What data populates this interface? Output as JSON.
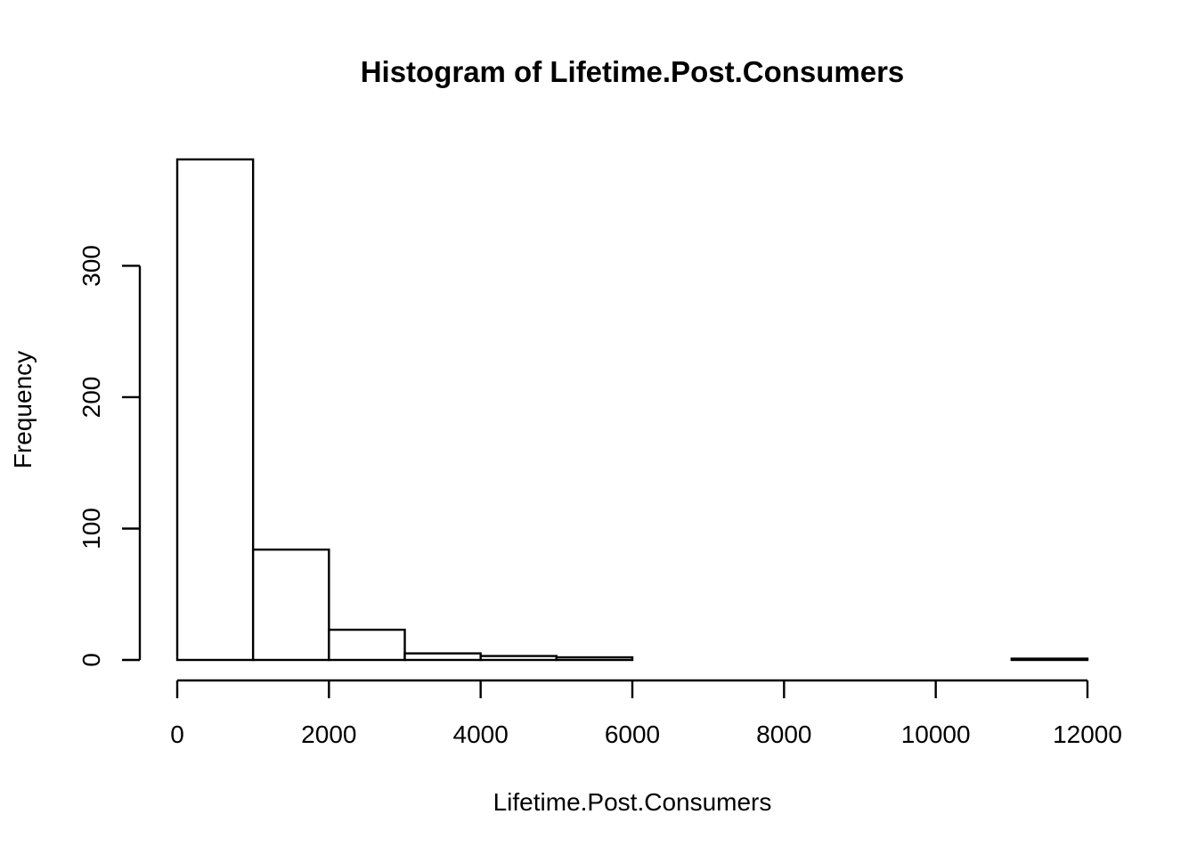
{
  "chart_data": {
    "type": "bar",
    "title": "Histogram of Lifetime.Post.Consumers",
    "xlabel": "Lifetime.Post.Consumers",
    "ylabel": "Frequency",
    "bins": [
      {
        "start": 0,
        "end": 1000,
        "count": 381
      },
      {
        "start": 1000,
        "end": 2000,
        "count": 84
      },
      {
        "start": 2000,
        "end": 3000,
        "count": 23
      },
      {
        "start": 3000,
        "end": 4000,
        "count": 5
      },
      {
        "start": 4000,
        "end": 5000,
        "count": 3
      },
      {
        "start": 5000,
        "end": 6000,
        "count": 2
      },
      {
        "start": 6000,
        "end": 7000,
        "count": 0
      },
      {
        "start": 7000,
        "end": 8000,
        "count": 0
      },
      {
        "start": 8000,
        "end": 9000,
        "count": 0
      },
      {
        "start": 9000,
        "end": 10000,
        "count": 0
      },
      {
        "start": 10000,
        "end": 11000,
        "count": 0
      },
      {
        "start": 11000,
        "end": 12000,
        "count": 1
      }
    ],
    "xlim": [
      0,
      12000
    ],
    "ylim": [
      0,
      381
    ],
    "xticks": [
      0,
      2000,
      4000,
      6000,
      8000,
      10000,
      12000
    ],
    "xtick_labels": [
      "0",
      "2000",
      "4000",
      "6000",
      "8000",
      "10000",
      "12000"
    ],
    "yticks": [
      0,
      100,
      200,
      300
    ],
    "ytick_labels": [
      "0",
      "100",
      "200",
      "300"
    ],
    "grid": false
  }
}
